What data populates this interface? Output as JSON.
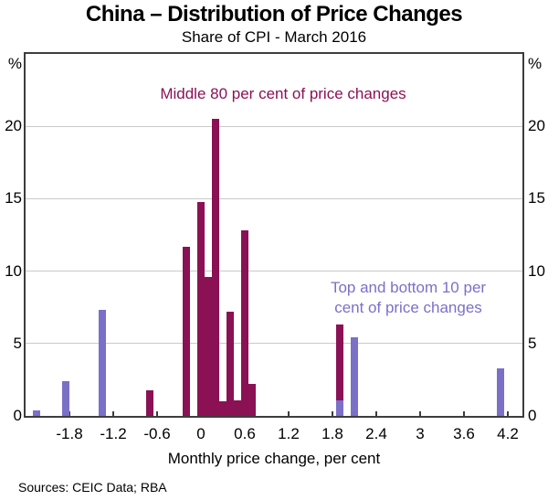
{
  "header": {
    "title": "China – Distribution of Price Changes",
    "subtitle": "Share of CPI - March 2016"
  },
  "footer": {
    "sources": "Sources: CEIC Data; RBA"
  },
  "chart_data": {
    "type": "bar",
    "title": "China – Distribution of Price Changes",
    "subtitle": "Share of CPI - March 2016",
    "xlabel": "Monthly price change, per cent",
    "ylabel": "%",
    "xlim": [
      -2.4,
      4.4
    ],
    "ylim": [
      0,
      25
    ],
    "grid": "horizontal",
    "y_gridlines": [
      5,
      10,
      15,
      20
    ],
    "y_ticks": [
      "0",
      "5",
      "10",
      "15",
      "20"
    ],
    "y_tick_values": [
      0,
      5,
      10,
      15,
      20
    ],
    "x_ticks": [
      {
        "v": -1.8,
        "label": "-1.8"
      },
      {
        "v": -1.2,
        "label": "-1.2"
      },
      {
        "v": -0.6,
        "label": "-0.6"
      },
      {
        "v": 0,
        "label": "0"
      },
      {
        "v": 0.6,
        "label": "0.6"
      },
      {
        "v": 1.2,
        "label": "1.2"
      },
      {
        "v": 1.8,
        "label": "1.8"
      },
      {
        "v": 2.4,
        "label": "2.4"
      },
      {
        "v": 3,
        "label": "3"
      },
      {
        "v": 3.6,
        "label": "3.6"
      },
      {
        "v": 4.2,
        "label": "4.2"
      }
    ],
    "bar_width": 0.11,
    "series": [
      {
        "name": "Middle 80 per cent of price changes",
        "color": "#8B1155",
        "points": [
          {
            "x": -0.7,
            "y": 1.8
          },
          {
            "x": -0.2,
            "y": 11.7
          },
          {
            "x": 0.0,
            "y": 14.8
          },
          {
            "x": 0.1,
            "y": 9.6
          },
          {
            "x": 0.2,
            "y": 20.5
          },
          {
            "x": 0.3,
            "y": 1.0
          },
          {
            "x": 0.4,
            "y": 7.2
          },
          {
            "x": 0.5,
            "y": 1.1
          },
          {
            "x": 0.6,
            "y": 12.8
          },
          {
            "x": 0.7,
            "y": 2.2
          },
          {
            "x": 1.9,
            "y": 6.3
          }
        ]
      },
      {
        "name": "Top and bottom 10 per cent of price changes",
        "color": "#7A70C8",
        "points": [
          {
            "x": -2.25,
            "y": 0.4
          },
          {
            "x": -1.85,
            "y": 2.4
          },
          {
            "x": -1.35,
            "y": 7.3
          },
          {
            "x": 1.9,
            "y": 1.1
          },
          {
            "x": 2.1,
            "y": 5.4
          },
          {
            "x": 4.1,
            "y": 3.3
          }
        ]
      }
    ],
    "annotations": {
      "middle": {
        "text": "Middle 80 per cent of price changes",
        "color": "#8B1155"
      },
      "tails": {
        "line1": "Top and bottom 10 per",
        "line2": "cent of price changes",
        "color": "#7A70C8"
      }
    }
  }
}
